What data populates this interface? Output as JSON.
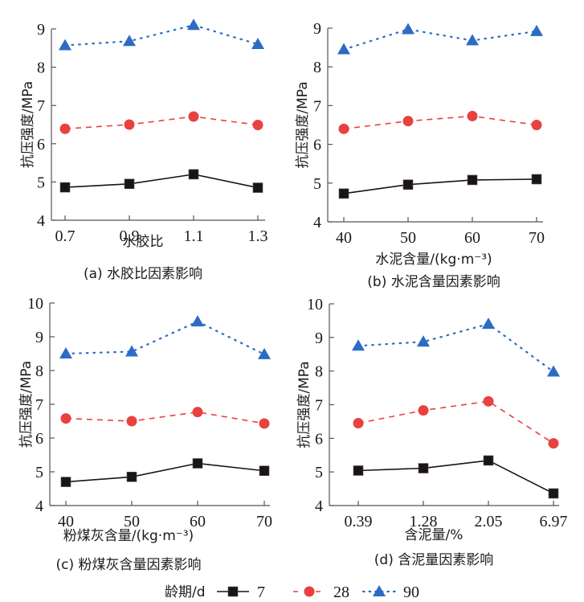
{
  "figure": {
    "legend_title": "龄期/d",
    "legend": [
      {
        "name": "7",
        "color": "#1a1414",
        "marker": "square",
        "line": "solid"
      },
      {
        "name": "28",
        "color": "#e8413f",
        "marker": "circle",
        "line": "dashed"
      },
      {
        "name": "90",
        "color": "#2b6cc4",
        "marker": "triangle",
        "line": "dotted"
      }
    ]
  },
  "chart_data": [
    {
      "type": "line",
      "caption": "(a) 水胶比因素影响",
      "xlabel": "水胶比",
      "ylabel": "抗压强度/MPa",
      "categories": [
        "0.7",
        "0.9",
        "1.1",
        "1.3"
      ],
      "ylim": [
        4,
        9
      ],
      "yticks": [
        "4",
        "5",
        "6",
        "7",
        "8",
        "9"
      ],
      "series": [
        {
          "name": "7",
          "values": [
            4.86,
            4.95,
            5.2,
            4.85
          ]
        },
        {
          "name": "28",
          "values": [
            6.39,
            6.5,
            6.71,
            6.49
          ]
        },
        {
          "name": "90",
          "values": [
            8.57,
            8.68,
            9.1,
            8.6
          ]
        }
      ]
    },
    {
      "type": "line",
      "caption": "(b) 水泥含量因素影响",
      "xlabel": "水泥含量/(kg·m⁻³)",
      "ylabel": "抗压强度/MPa",
      "categories": [
        "40",
        "50",
        "60",
        "70"
      ],
      "ylim": [
        4,
        9
      ],
      "yticks": [
        "4",
        "5",
        "6",
        "7",
        "8",
        "9"
      ],
      "series": [
        {
          "name": "7",
          "values": [
            4.73,
            4.96,
            5.08,
            5.1
          ]
        },
        {
          "name": "28",
          "values": [
            6.4,
            6.6,
            6.73,
            6.5
          ]
        },
        {
          "name": "90",
          "values": [
            8.45,
            8.97,
            8.68,
            8.92
          ]
        }
      ]
    },
    {
      "type": "line",
      "caption": "(c) 粉煤灰含量因素影响",
      "xlabel": "粉煤灰含量/(kg·m⁻³)",
      "ylabel": "抗压强度/MPa",
      "categories": [
        "40",
        "50",
        "60",
        "70"
      ],
      "ylim": [
        4,
        10
      ],
      "yticks": [
        "4",
        "5",
        "6",
        "7",
        "8",
        "9",
        "10"
      ],
      "series": [
        {
          "name": "7",
          "values": [
            4.7,
            4.85,
            5.25,
            5.03
          ]
        },
        {
          "name": "28",
          "values": [
            6.58,
            6.5,
            6.77,
            6.43
          ]
        },
        {
          "name": "90",
          "values": [
            8.5,
            8.56,
            9.45,
            8.48
          ]
        }
      ]
    },
    {
      "type": "line",
      "caption": "(d) 含泥量因素影响",
      "xlabel": "含泥量/%",
      "ylabel": "抗压强度/MPa",
      "categories": [
        "0.39",
        "1.28",
        "2.05",
        "6.97"
      ],
      "ylim": [
        4,
        10
      ],
      "yticks": [
        "4",
        "5",
        "6",
        "7",
        "8",
        "9",
        "10"
      ],
      "series": [
        {
          "name": "7",
          "values": [
            5.04,
            5.11,
            5.34,
            4.36
          ]
        },
        {
          "name": "28",
          "values": [
            6.45,
            6.83,
            7.1,
            5.85
          ]
        },
        {
          "name": "90",
          "values": [
            8.75,
            8.87,
            9.4,
            7.98
          ]
        }
      ]
    }
  ]
}
